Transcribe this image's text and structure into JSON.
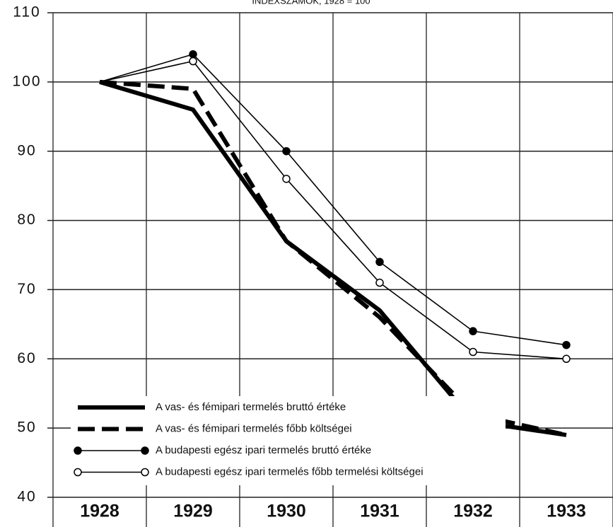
{
  "chart_data": {
    "type": "line",
    "title": "INDEXSZÁMOK, 1928 = 100",
    "categories": [
      "1928",
      "1929",
      "1930",
      "1931",
      "1932",
      "1933"
    ],
    "series": [
      {
        "name": "A vas- és fémipari termelés bruttó értéke",
        "color": "#000000",
        "line_style": "solid",
        "line_width": 6,
        "marker": null,
        "values": [
          100,
          96,
          77,
          67,
          51,
          49
        ]
      },
      {
        "name": "A vas- és fémipari termelés főbb költségei",
        "color": "#000000",
        "line_style": "dashed",
        "line_width": 6,
        "marker": null,
        "values": [
          100,
          99,
          77,
          66,
          52,
          49
        ]
      },
      {
        "name": "A budapesti egész ipari termelés bruttó értéke",
        "color": "#000000",
        "line_style": "solid",
        "line_width": 1.6,
        "marker": "filled",
        "values": [
          100,
          104,
          90,
          74,
          64,
          62
        ]
      },
      {
        "name": "A budapesti egész ipari termelés főbb termelési költségei",
        "color": "#000000",
        "line_style": "solid",
        "line_width": 1.6,
        "marker": "open",
        "values": [
          100,
          103,
          86,
          71,
          61,
          60
        ]
      }
    ],
    "ylim": [
      40,
      110
    ],
    "yticks": [
      40,
      50,
      60,
      70,
      80,
      90,
      100,
      110
    ],
    "grid": true,
    "legend": "lower left"
  }
}
